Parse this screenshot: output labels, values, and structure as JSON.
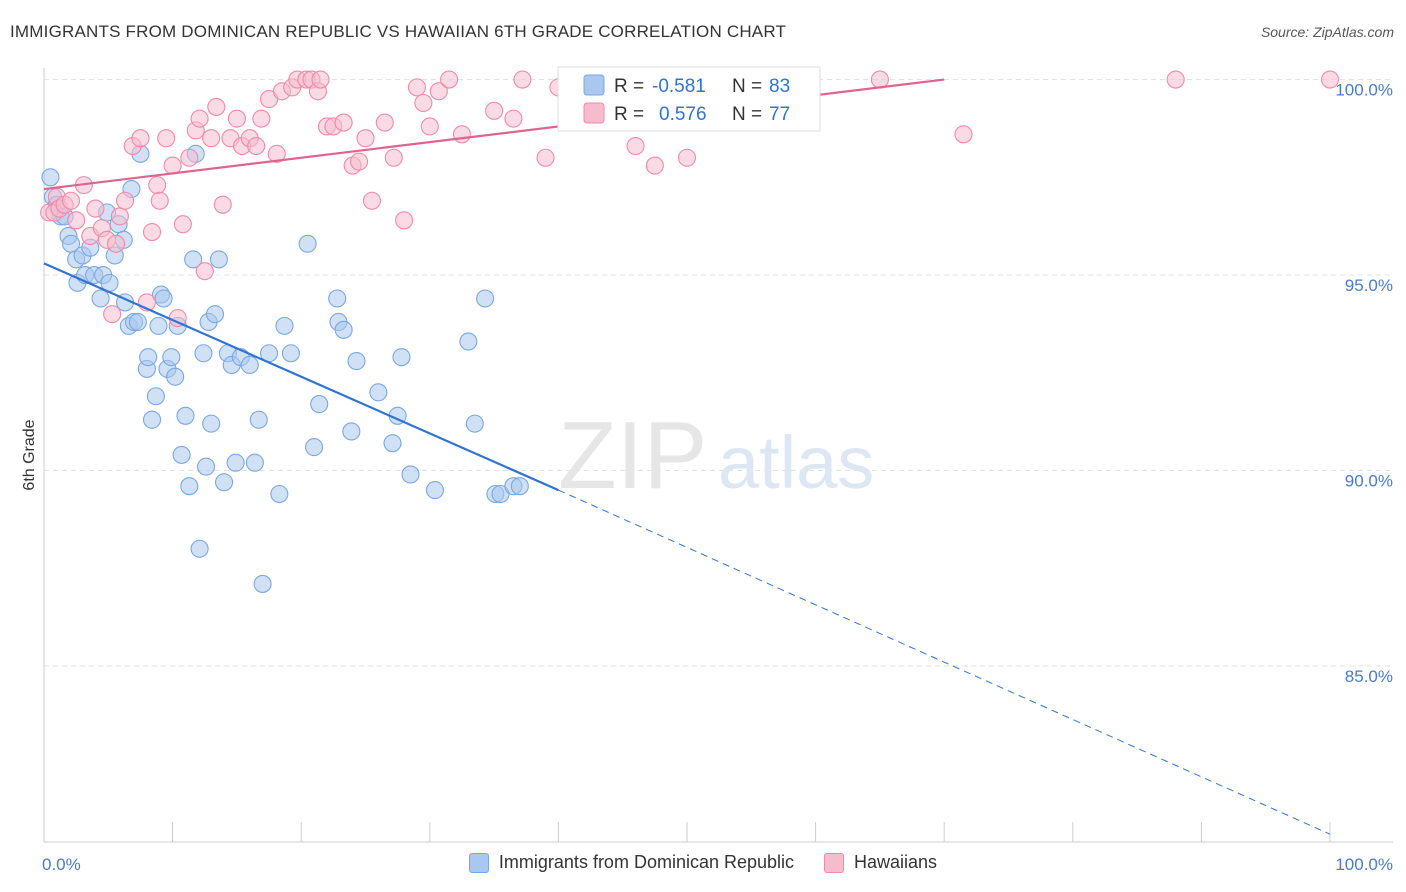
{
  "title": "IMMIGRANTS FROM DOMINICAN REPUBLIC VS HAWAIIAN 6TH GRADE CORRELATION CHART",
  "source": "Source: ZipAtlas.com",
  "watermark": {
    "zip": "ZIP",
    "atlas": "atlas"
  },
  "colors": {
    "blue": "#7aa7e0",
    "blue_fill": "#aac8ef",
    "blue_line": "#2f74d0",
    "pink": "#f08aa8",
    "pink_fill": "#f6bccd",
    "pink_line": "#e0638e",
    "tick_text": "#4a7bc8",
    "grid": "#e2e2e2"
  },
  "legend": {
    "rows": [
      {
        "r_label": "R =",
        "r_value": "-0.581",
        "n_label": "N =",
        "n_value": "83"
      },
      {
        "r_label": "R =",
        "r_value": "0.576",
        "n_label": "N =",
        "n_value": "77"
      }
    ]
  },
  "bottom_legend": [
    {
      "label": "Immigrants from Dominican Republic"
    },
    {
      "label": "Hawaiians"
    }
  ],
  "chart_data": {
    "type": "scatter",
    "xlabel": "",
    "ylabel": "6th Grade",
    "xlim": [
      0,
      100
    ],
    "ylim": [
      80.5,
      100.5
    ],
    "x_tick_labels": [
      "0.0%",
      "100.0%"
    ],
    "y_ticks": [
      85,
      90,
      95,
      100
    ],
    "y_tick_labels": [
      "85.0%",
      "90.0%",
      "95.0%",
      "100.0%"
    ],
    "grid": true,
    "legend_position": "top-center",
    "series": [
      {
        "name": "Immigrants from Dominican Republic",
        "color": "#7aa7e0",
        "r": -0.581,
        "n": 83,
        "trend": {
          "x0": 0,
          "y0": 95.3,
          "x1": 40,
          "y1": 89.5,
          "dashed_to_x": 100,
          "dashed_to_y": 80.7
        },
        "points": [
          [
            0.5,
            97.5
          ],
          [
            0.7,
            97.0
          ],
          [
            1.0,
            96.8
          ],
          [
            1.3,
            96.5
          ],
          [
            1.6,
            96.5
          ],
          [
            1.9,
            96.0
          ],
          [
            2.1,
            95.8
          ],
          [
            2.5,
            95.4
          ],
          [
            2.6,
            94.8
          ],
          [
            3.0,
            95.5
          ],
          [
            3.2,
            95.0
          ],
          [
            3.6,
            95.7
          ],
          [
            3.9,
            95.0
          ],
          [
            4.4,
            94.4
          ],
          [
            4.6,
            95.0
          ],
          [
            4.9,
            96.6
          ],
          [
            5.1,
            94.8
          ],
          [
            5.5,
            95.5
          ],
          [
            5.8,
            96.3
          ],
          [
            6.2,
            95.9
          ],
          [
            6.3,
            94.3
          ],
          [
            6.6,
            93.7
          ],
          [
            6.8,
            97.2
          ],
          [
            7.0,
            93.8
          ],
          [
            7.3,
            93.8
          ],
          [
            7.5,
            98.1
          ],
          [
            8.0,
            92.6
          ],
          [
            8.1,
            92.9
          ],
          [
            8.4,
            91.3
          ],
          [
            8.7,
            91.9
          ],
          [
            8.9,
            93.7
          ],
          [
            9.1,
            94.5
          ],
          [
            9.3,
            94.4
          ],
          [
            9.6,
            92.6
          ],
          [
            9.9,
            92.9
          ],
          [
            10.2,
            92.4
          ],
          [
            10.4,
            93.7
          ],
          [
            10.7,
            90.4
          ],
          [
            11.0,
            91.4
          ],
          [
            11.3,
            89.6
          ],
          [
            11.6,
            95.4
          ],
          [
            11.8,
            98.1
          ],
          [
            12.1,
            88.0
          ],
          [
            12.4,
            93.0
          ],
          [
            12.6,
            90.1
          ],
          [
            12.8,
            93.8
          ],
          [
            13.0,
            91.2
          ],
          [
            13.3,
            94.0
          ],
          [
            13.6,
            95.4
          ],
          [
            14.0,
            89.7
          ],
          [
            14.3,
            93.0
          ],
          [
            14.6,
            92.7
          ],
          [
            14.9,
            90.2
          ],
          [
            15.3,
            92.9
          ],
          [
            16.0,
            92.7
          ],
          [
            16.4,
            90.2
          ],
          [
            16.7,
            91.3
          ],
          [
            17.0,
            87.1
          ],
          [
            17.5,
            93.0
          ],
          [
            18.3,
            89.4
          ],
          [
            18.7,
            93.7
          ],
          [
            19.2,
            93.0
          ],
          [
            20.5,
            95.8
          ],
          [
            21.0,
            90.6
          ],
          [
            21.4,
            91.7
          ],
          [
            22.8,
            94.4
          ],
          [
            22.9,
            93.8
          ],
          [
            23.3,
            93.6
          ],
          [
            23.9,
            91.0
          ],
          [
            24.3,
            92.8
          ],
          [
            26.0,
            92.0
          ],
          [
            27.1,
            90.7
          ],
          [
            27.5,
            91.4
          ],
          [
            27.8,
            92.9
          ],
          [
            28.5,
            89.9
          ],
          [
            30.4,
            89.5
          ],
          [
            33.0,
            93.3
          ],
          [
            33.5,
            91.2
          ],
          [
            34.3,
            94.4
          ],
          [
            35.1,
            89.4
          ],
          [
            35.5,
            89.4
          ],
          [
            36.5,
            89.6
          ],
          [
            37.0,
            89.6
          ]
        ]
      },
      {
        "name": "Hawaiians",
        "color": "#f08aa8",
        "r": 0.576,
        "n": 77,
        "trend": {
          "x0": 0,
          "y0": 97.2,
          "x1": 70,
          "y1": 100.0
        },
        "points": [
          [
            0.4,
            96.6
          ],
          [
            0.8,
            96.6
          ],
          [
            1.0,
            97.0
          ],
          [
            1.2,
            96.7
          ],
          [
            1.6,
            96.8
          ],
          [
            2.1,
            96.9
          ],
          [
            2.5,
            96.4
          ],
          [
            3.1,
            97.3
          ],
          [
            3.6,
            96.0
          ],
          [
            4.0,
            96.7
          ],
          [
            4.5,
            96.2
          ],
          [
            4.9,
            95.9
          ],
          [
            5.3,
            94.0
          ],
          [
            5.6,
            95.8
          ],
          [
            5.9,
            96.5
          ],
          [
            6.3,
            96.9
          ],
          [
            6.9,
            98.3
          ],
          [
            7.5,
            98.5
          ],
          [
            8.0,
            94.3
          ],
          [
            8.4,
            96.1
          ],
          [
            8.8,
            97.3
          ],
          [
            9.0,
            96.9
          ],
          [
            9.5,
            98.5
          ],
          [
            10.0,
            97.8
          ],
          [
            10.4,
            93.9
          ],
          [
            10.8,
            96.3
          ],
          [
            11.3,
            98.0
          ],
          [
            11.8,
            98.7
          ],
          [
            12.1,
            99.0
          ],
          [
            12.5,
            95.1
          ],
          [
            13.0,
            98.5
          ],
          [
            13.4,
            99.3
          ],
          [
            13.9,
            96.8
          ],
          [
            14.5,
            98.5
          ],
          [
            15.0,
            99.0
          ],
          [
            15.4,
            98.3
          ],
          [
            16.0,
            98.5
          ],
          [
            16.5,
            98.3
          ],
          [
            16.9,
            99.0
          ],
          [
            17.5,
            99.5
          ],
          [
            18.1,
            98.1
          ],
          [
            18.5,
            99.7
          ],
          [
            19.3,
            99.8
          ],
          [
            19.7,
            100.0
          ],
          [
            20.4,
            100.0
          ],
          [
            20.8,
            100.0
          ],
          [
            21.3,
            99.7
          ],
          [
            21.5,
            100.0
          ],
          [
            22.0,
            98.8
          ],
          [
            22.5,
            98.8
          ],
          [
            23.3,
            98.9
          ],
          [
            24.0,
            97.8
          ],
          [
            24.5,
            97.9
          ],
          [
            25.0,
            98.5
          ],
          [
            25.5,
            96.9
          ],
          [
            26.5,
            98.9
          ],
          [
            27.2,
            98.0
          ],
          [
            28.0,
            96.4
          ],
          [
            29.0,
            99.8
          ],
          [
            29.5,
            99.4
          ],
          [
            30.0,
            98.8
          ],
          [
            30.7,
            99.7
          ],
          [
            31.5,
            100.0
          ],
          [
            32.5,
            98.6
          ],
          [
            35.0,
            99.2
          ],
          [
            36.5,
            99.0
          ],
          [
            37.2,
            100.0
          ],
          [
            39.0,
            98.0
          ],
          [
            40.0,
            99.8
          ],
          [
            46.0,
            98.3
          ],
          [
            47.5,
            97.8
          ],
          [
            50.0,
            98.0
          ],
          [
            59.0,
            100.0
          ],
          [
            65.0,
            100.0
          ],
          [
            71.5,
            98.6
          ],
          [
            88.0,
            100.0
          ],
          [
            100.0,
            100.0
          ]
        ]
      }
    ]
  }
}
